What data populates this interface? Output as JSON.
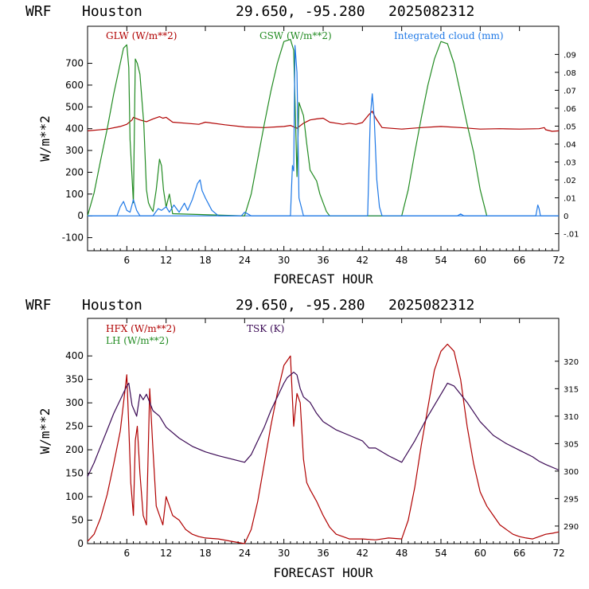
{
  "chart_data": [
    {
      "type": "line",
      "header": {
        "model": "WRF",
        "city": "Houston",
        "coords": "29.650, -95.280",
        "date": "2025082312"
      },
      "xlabel": "FORECAST HOUR",
      "ylabel": "W/m**2",
      "xlim": [
        0,
        72
      ],
      "ylim": [
        -160,
        870
      ],
      "x_ticks": [
        6,
        12,
        18,
        24,
        30,
        36,
        42,
        48,
        54,
        60,
        66,
        72
      ],
      "y_ticks": [
        -100,
        0,
        100,
        200,
        300,
        400,
        500,
        600,
        700
      ],
      "y2lim": [
        -0.0195,
        0.1057
      ],
      "y2_ticks": [
        "-.01",
        "0",
        ".01",
        ".02",
        ".03",
        ".04",
        ".05",
        ".06",
        ".07",
        ".08",
        ".09"
      ],
      "y2_tick_values": [
        -0.01,
        0,
        0.01,
        0.02,
        0.03,
        0.04,
        0.05,
        0.06,
        0.07,
        0.08,
        0.09
      ],
      "zero_line": 0,
      "series": [
        {
          "name": "GLW (W/m**2)",
          "color": "#b00000",
          "axis": "left",
          "x": [
            0,
            3,
            5,
            6,
            6.8,
            7,
            8,
            9,
            10,
            11,
            11.5,
            12,
            13,
            15,
            17,
            18,
            21,
            24,
            27,
            30,
            31,
            32,
            33,
            34,
            35,
            36,
            37,
            38,
            39,
            40,
            41,
            42,
            43,
            43.5,
            44,
            45,
            48,
            51,
            54,
            57,
            60,
            63,
            66,
            69,
            69.8,
            70,
            71,
            72
          ],
          "y": [
            390,
            398,
            410,
            420,
            440,
            452,
            440,
            432,
            445,
            455,
            448,
            452,
            430,
            425,
            420,
            430,
            418,
            408,
            405,
            410,
            415,
            402,
            425,
            440,
            445,
            448,
            430,
            425,
            420,
            425,
            420,
            428,
            465,
            480,
            450,
            405,
            398,
            405,
            410,
            405,
            398,
            400,
            398,
            400,
            405,
            395,
            388,
            390
          ]
        },
        {
          "name": "GSW (W/m**2)",
          "color": "#228b22",
          "axis": "left",
          "x": [
            0,
            1,
            2,
            3,
            4,
            5,
            5.5,
            6,
            6.3,
            6.5,
            7,
            7.3,
            7.6,
            8,
            8.6,
            9,
            9.3,
            9.6,
            10,
            10.5,
            11,
            11.3,
            11.6,
            12,
            12.5,
            13,
            24,
            25,
            26,
            27,
            28,
            29,
            30,
            31,
            31.5,
            32,
            32.3,
            33,
            33.5,
            34,
            35,
            35.5,
            36,
            36.5,
            37,
            48,
            49,
            50,
            51,
            52,
            53,
            54,
            55,
            56,
            57,
            58,
            59,
            60,
            61
          ],
          "y": [
            0,
            105,
            255,
            400,
            560,
            700,
            770,
            785,
            680,
            350,
            60,
            720,
            700,
            650,
            420,
            120,
            60,
            40,
            20,
            120,
            260,
            230,
            120,
            40,
            100,
            10,
            0,
            100,
            260,
            420,
            570,
            700,
            800,
            810,
            760,
            180,
            520,
            460,
            330,
            210,
            160,
            100,
            60,
            20,
            0,
            0,
            120,
            290,
            450,
            600,
            720,
            800,
            790,
            700,
            560,
            420,
            290,
            120,
            0
          ]
        },
        {
          "name": "Integrated cloud (mm)",
          "color": "#1e78e6",
          "axis": "right",
          "x": [
            0,
            4.5,
            5,
            5.5,
            6,
            6.5,
            7,
            7.5,
            8,
            10,
            10.8,
            11.3,
            12,
            12.5,
            13.2,
            14,
            14.8,
            15.3,
            16,
            16.8,
            17.2,
            17.5,
            18,
            19,
            20,
            23.5,
            24,
            24.5,
            25,
            31,
            31.3,
            31.5,
            31.7,
            32,
            32.3,
            33,
            42.8,
            43.2,
            43.5,
            43.8,
            44.2,
            44.6,
            45,
            56.5,
            57,
            57.5,
            68.5,
            68.8,
            69,
            69.2,
            72
          ],
          "y": [
            0,
            0,
            0.005,
            0.008,
            0.003,
            0.002,
            0.009,
            0.003,
            0,
            0,
            0.004,
            0.003,
            0.005,
            0.002,
            0.006,
            0.002,
            0.007,
            0.003,
            0.009,
            0.018,
            0.02,
            0.014,
            0.01,
            0.003,
            0,
            0,
            0.002,
            0.001,
            0,
            0,
            0.028,
            0.025,
            0.095,
            0.08,
            0.01,
            0,
            0,
            0.055,
            0.068,
            0.055,
            0.02,
            0.005,
            0,
            0,
            0.001,
            0,
            0,
            0.006,
            0.004,
            0,
            0
          ]
        }
      ]
    },
    {
      "type": "line",
      "header": {
        "model": "WRF",
        "city": "Houston",
        "coords": "29.650, -95.280",
        "date": "2025082312"
      },
      "xlabel": "FORECAST HOUR",
      "ylabel": "W/m**2",
      "xlim": [
        0,
        72
      ],
      "ylim": [
        0,
        480
      ],
      "x_ticks": [
        6,
        12,
        18,
        24,
        30,
        36,
        42,
        48,
        54,
        60,
        66,
        72
      ],
      "y_ticks": [
        0,
        50,
        100,
        150,
        200,
        250,
        300,
        350,
        400
      ],
      "y2lim": [
        286.8,
        327.8
      ],
      "y2_ticks": [
        "290",
        "295",
        "300",
        "305",
        "310",
        "315",
        "320"
      ],
      "y2_tick_values": [
        290,
        295,
        300,
        305,
        310,
        315,
        320
      ],
      "series": [
        {
          "name": "HFX (W/m**2)",
          "color": "#b00000",
          "axis": "left",
          "x": [
            0,
            1,
            2,
            3,
            4,
            5,
            5.5,
            6,
            6.3,
            6.6,
            7,
            7.3,
            7.6,
            8,
            8.5,
            9,
            9.5,
            10,
            10.5,
            11,
            11.5,
            12,
            12.5,
            13,
            14,
            15,
            16,
            17,
            18,
            20,
            22,
            24,
            25,
            26,
            27,
            28,
            29,
            30,
            30.5,
            31,
            31.5,
            32,
            32.5,
            33,
            33.5,
            34,
            35,
            36,
            37,
            38,
            40,
            42,
            44,
            46,
            48,
            49,
            50,
            51,
            52,
            53,
            54,
            55,
            56,
            57,
            58,
            59,
            60,
            61,
            62,
            63,
            64,
            65,
            66,
            67,
            68,
            69,
            70,
            71,
            72
          ],
          "y": [
            5,
            20,
            55,
            105,
            170,
            240,
            300,
            360,
            250,
            130,
            60,
            220,
            250,
            150,
            60,
            40,
            330,
            200,
            80,
            60,
            40,
            100,
            80,
            60,
            50,
            30,
            20,
            15,
            12,
            10,
            5,
            0,
            30,
            90,
            170,
            250,
            320,
            380,
            390,
            400,
            250,
            320,
            300,
            180,
            130,
            115,
            90,
            60,
            35,
            20,
            10,
            10,
            8,
            12,
            10,
            50,
            120,
            210,
            290,
            370,
            410,
            425,
            410,
            350,
            250,
            170,
            110,
            80,
            60,
            40,
            30,
            20,
            15,
            12,
            10,
            15,
            20,
            22,
            25
          ]
        },
        {
          "name": "LH  (W/m**2)",
          "color": "#228b22",
          "axis": "left",
          "x": [],
          "y": []
        },
        {
          "name": "TSK (K)",
          "color": "#3b0a55",
          "axis": "right",
          "x": [
            0,
            1,
            2,
            3,
            4,
            5,
            6,
            6.3,
            6.8,
            7.5,
            8,
            8.5,
            9,
            9.5,
            10,
            11,
            12,
            14,
            16,
            18,
            20,
            22,
            24,
            25,
            26,
            27,
            28,
            29,
            30,
            30.5,
            31,
            31.5,
            32,
            32.5,
            33,
            34,
            35,
            36,
            38,
            40,
            42,
            43,
            44,
            46,
            48,
            50,
            52,
            54,
            55,
            56,
            58,
            60,
            62,
            64,
            66,
            68,
            69,
            70,
            72
          ],
          "y": [
            299,
            301.5,
            304.5,
            307.5,
            310.5,
            313,
            315.5,
            316,
            312,
            310,
            314,
            313,
            314,
            312.5,
            311,
            310,
            308,
            306,
            304.5,
            303.5,
            302.8,
            302.2,
            301.6,
            303,
            305.5,
            308,
            311,
            313.5,
            316,
            317,
            317.5,
            318,
            317.5,
            315,
            313.5,
            312.5,
            310.5,
            309,
            307.5,
            306.5,
            305.5,
            304.2,
            304.2,
            302.8,
            301.6,
            305.5,
            310,
            314,
            316,
            315.5,
            312.5,
            309,
            306.5,
            305,
            303.8,
            302.6,
            301.8,
            301.2,
            300.2
          ]
        }
      ]
    }
  ]
}
